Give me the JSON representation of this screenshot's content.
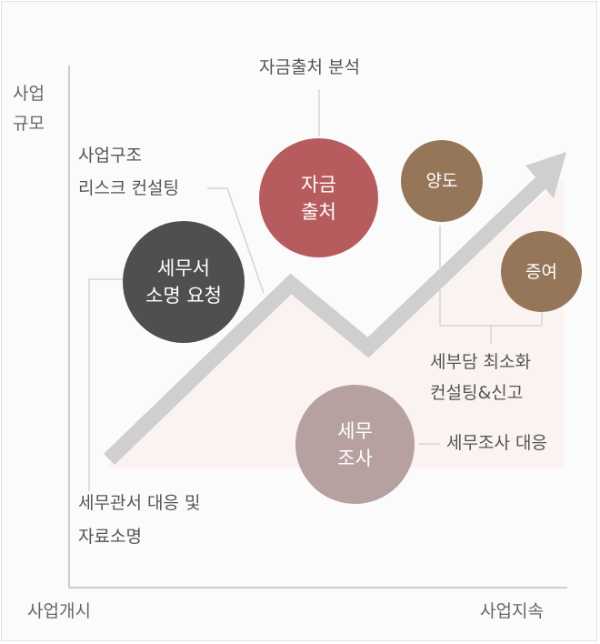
{
  "axes": {
    "y_label_line1": "사업",
    "y_label_line2": "규모",
    "x_start": "사업개시",
    "x_end": "사업지속"
  },
  "nodes": {
    "n1": {
      "line1": "세무서",
      "line2": "소명 요청",
      "color": "#4f4f4f"
    },
    "n2": {
      "line1": "자금",
      "line2": "출처",
      "color": "#b65c5f"
    },
    "n3": {
      "line1": "양도",
      "color": "#957659"
    },
    "n4": {
      "line1": "증여",
      "color": "#957659"
    },
    "n5": {
      "line1": "세무",
      "line2": "조사",
      "color": "#b6a0a0"
    }
  },
  "annotations": {
    "a1": {
      "line1": "세무관서 대응 및",
      "line2": "자료소명"
    },
    "a2": {
      "line1": "사업구조",
      "line2": "리스크 컨설팅"
    },
    "a3": {
      "line1": "자금출처 분석"
    },
    "a4": {
      "line1": "세부담 최소화",
      "line2": "컨설팅&신고"
    },
    "a5": {
      "line1": "세무조사 대응"
    }
  },
  "colors": {
    "arrow": "#cfcfcf",
    "axis": "#cccccc",
    "connector": "#d4d4d4",
    "area": "#fbf2f2"
  }
}
